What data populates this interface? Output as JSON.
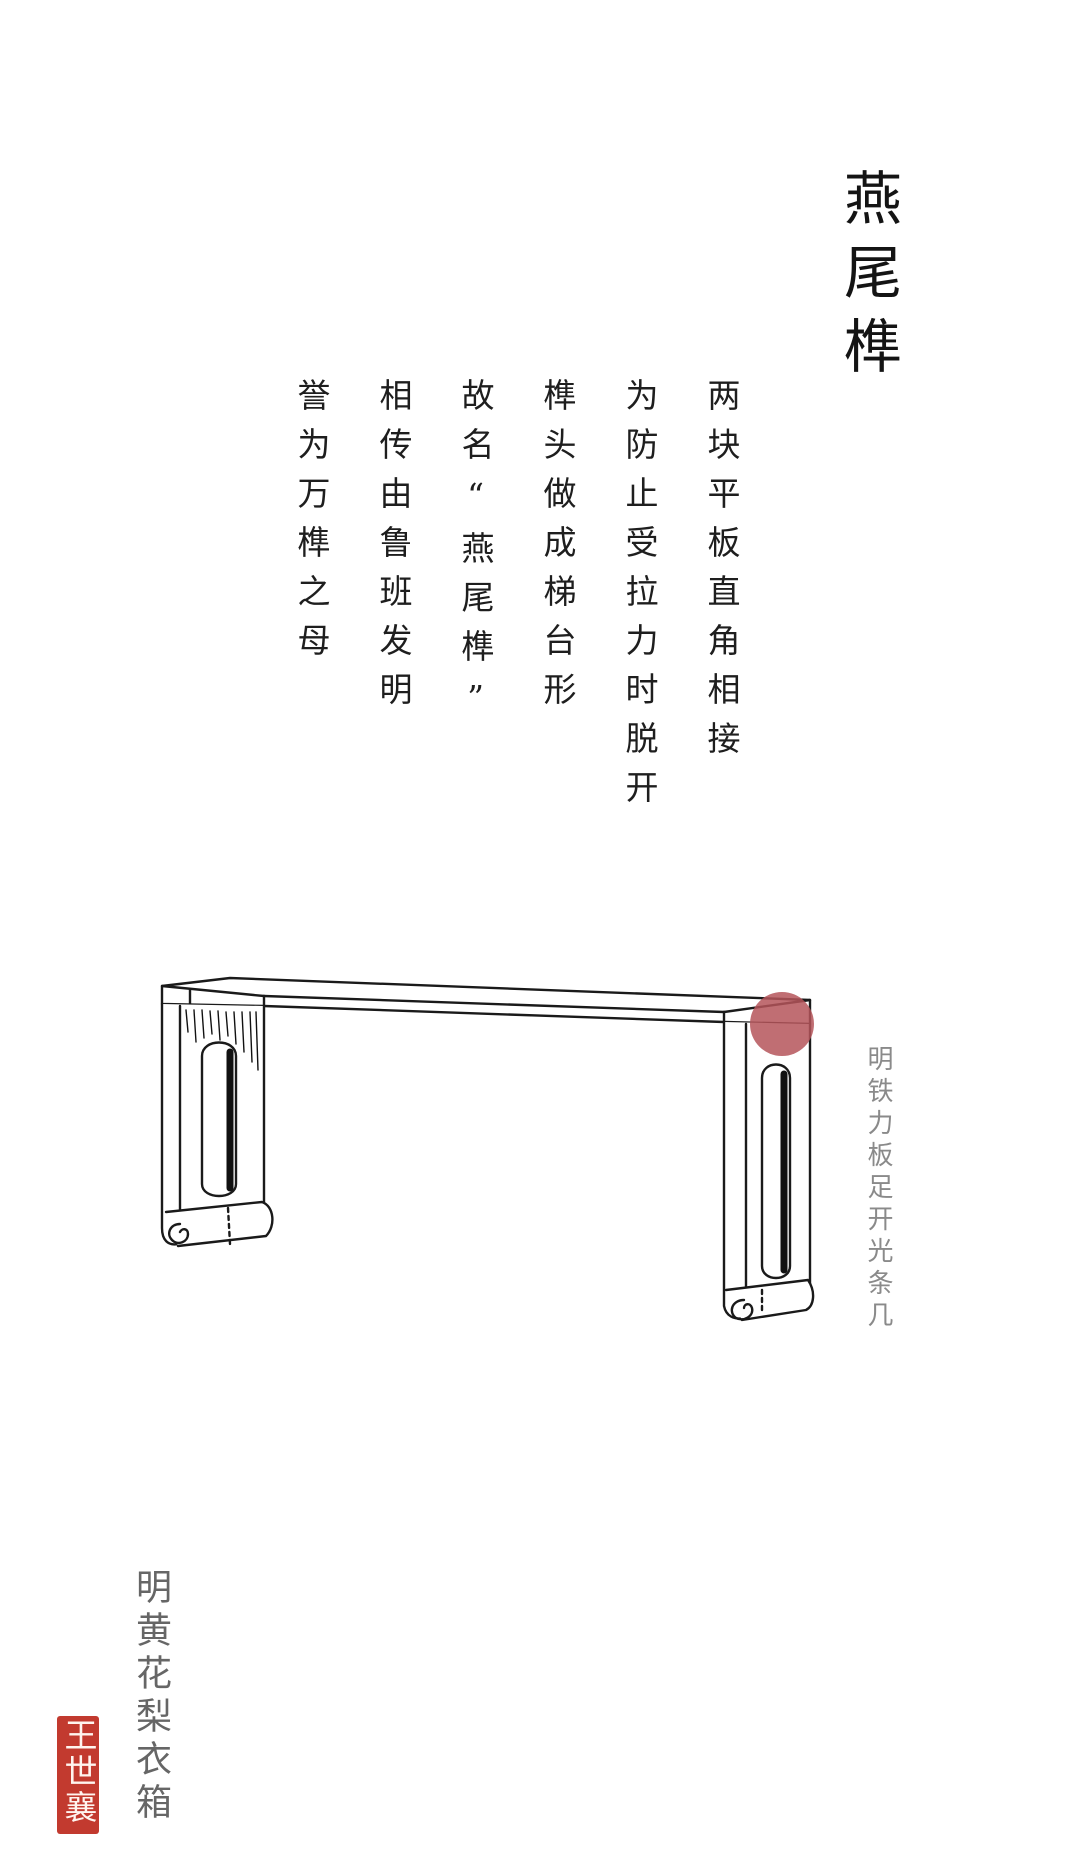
{
  "title": "燕尾榫",
  "poem": {
    "columns": [
      "两块平板直角相接",
      "为防止受拉力时脱开",
      "榫头做成梯台形",
      "故名“燕尾榫”",
      "相传由鲁班发明",
      "誉为万榫之母"
    ]
  },
  "illustration": {
    "subject": "table-illustration",
    "highlight_color": "#b5555a"
  },
  "captions": {
    "right": "明铁力板足开光条几",
    "left": "明黄花梨衣箱"
  },
  "seal": {
    "text": "王世襄",
    "color": "#c23a2f"
  }
}
